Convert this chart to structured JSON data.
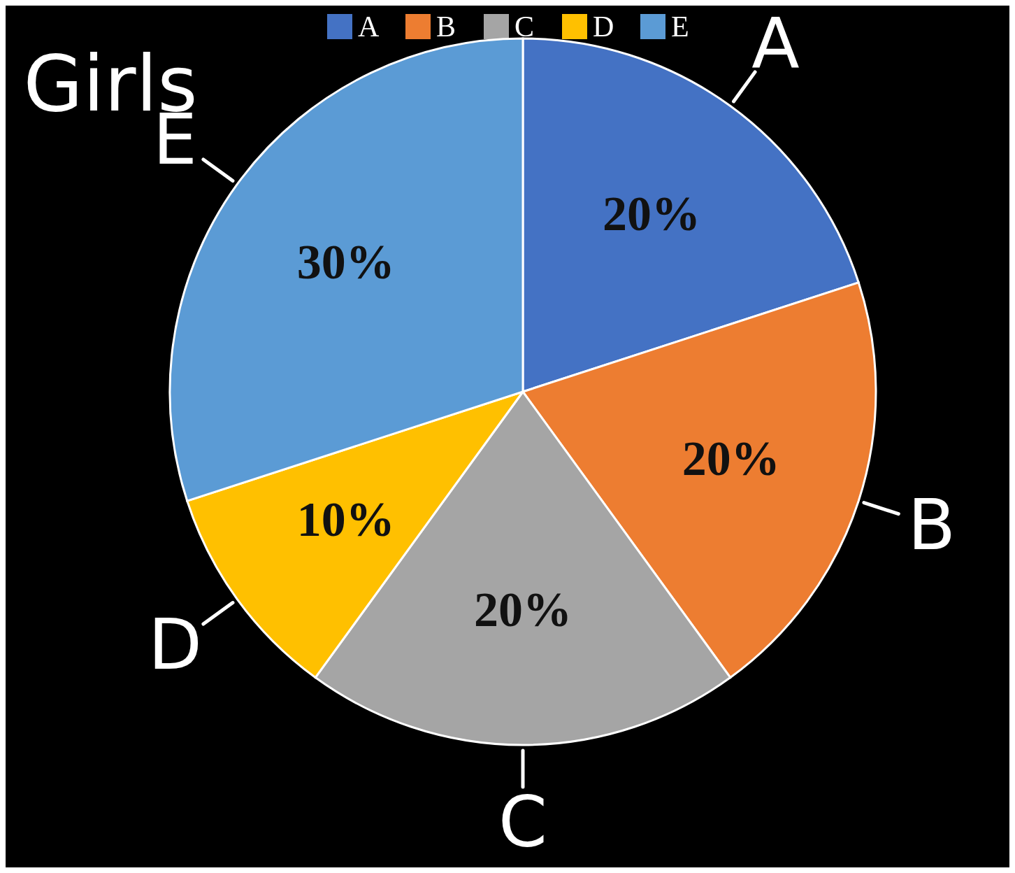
{
  "chart_data": {
    "type": "pie",
    "title": "Girls",
    "categories": [
      "A",
      "B",
      "C",
      "D",
      "E"
    ],
    "values": [
      20,
      20,
      20,
      10,
      30
    ],
    "colors": [
      "#4472c4",
      "#ed7d31",
      "#a5a5a5",
      "#ffc000",
      "#5b9bd5"
    ],
    "value_labels": [
      "20%",
      "20%",
      "20%",
      "10%",
      "30%"
    ],
    "legend": "top"
  }
}
